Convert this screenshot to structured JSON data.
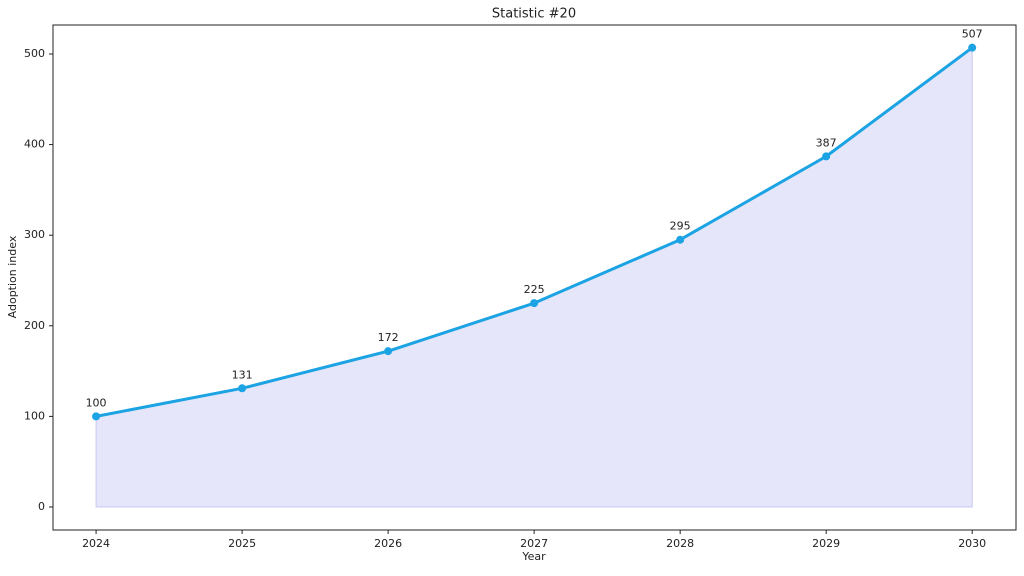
{
  "chart_data": {
    "type": "line",
    "title": "Statistic #20",
    "x_label": "Year",
    "y_label": "Adoption index",
    "x": [
      2024,
      2025,
      2026,
      2027,
      2028,
      2029,
      2030
    ],
    "series": [
      {
        "color": "#1ba3e3",
        "values": [
          100,
          131,
          172,
          225,
          295,
          387,
          507
        ]
      }
    ],
    "fill_color": "#e6e6fa",
    "xlim": [
      2023.705,
      2030.3
    ],
    "xticks": [
      2024,
      2025,
      2026,
      2027,
      2028,
      2029,
      2030
    ],
    "ylim": [
      -25.4,
      532
    ],
    "yticks": [
      0,
      100,
      200,
      300,
      400,
      500
    ],
    "grid": false
  }
}
